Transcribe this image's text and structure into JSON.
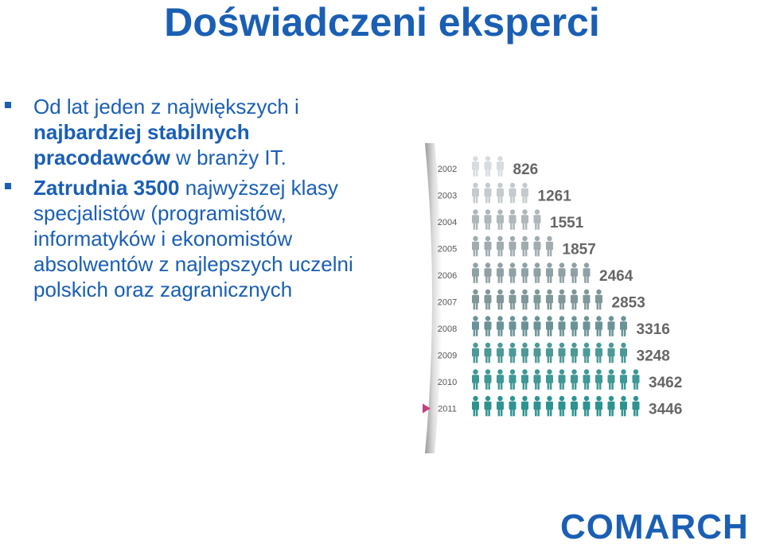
{
  "title": "Doświadczeni eksperci",
  "bullets": [
    {
      "parts": [
        {
          "text": "Od lat jeden z największych i ",
          "bold": false
        },
        {
          "text": "najbardziej stabilnych pracodawców",
          "bold": true
        },
        {
          "text": " w branży IT.",
          "bold": false
        }
      ]
    },
    {
      "parts": [
        {
          "text": "Zatrudnia 3500",
          "bold": true
        },
        {
          "text": " najwyższej klasy specjalistów (programistów, informatyków i ekonomistów absolwentów z najlepszych uczelni polskich oraz zagranicznych",
          "bold": false
        }
      ]
    }
  ],
  "chart_data": {
    "type": "bar",
    "categories": [
      "2002",
      "2003",
      "2004",
      "2005",
      "2006",
      "2007",
      "2008",
      "2009",
      "2010",
      "2011"
    ],
    "values": [
      826,
      1261,
      1551,
      1857,
      2464,
      2853,
      3316,
      3248,
      3462,
      3446
    ],
    "colors": [
      "#d8dcde",
      "#c4cacd",
      "#aeb7ba",
      "#a0acaf",
      "#8fa1a5",
      "#7f9799",
      "#6a9397",
      "#4c9a98",
      "#3d9896",
      "#2d9391"
    ],
    "value_label_color": "#666666",
    "year_label_color": "#555555",
    "marker_color": "#c2407e",
    "highlight_year": "2011",
    "unit_per_icon": 250
  },
  "logo": "COMARCH"
}
